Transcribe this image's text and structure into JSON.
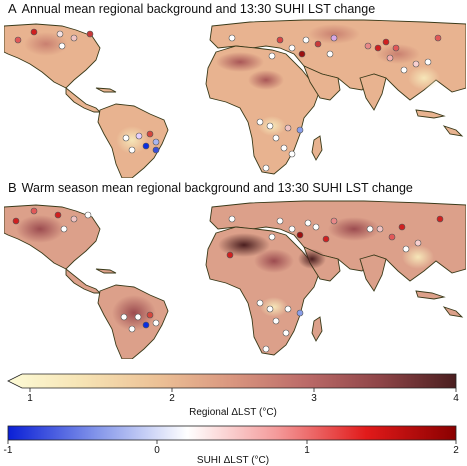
{
  "panels": [
    {
      "letter": "A",
      "title": "Annual mean regional background and 13:30 SUHI LST change"
    },
    {
      "letter": "B",
      "title": "Warm season mean regional background and 13:30 SUHI LST change"
    }
  ],
  "colorbars": {
    "regional": {
      "label": "Regional ΔLST (°C)",
      "ticks": [
        "1",
        "2",
        "3",
        "4"
      ],
      "colors": [
        "#fdfbd6",
        "#f6e3b4",
        "#ecc196",
        "#d9967f",
        "#bb6a68",
        "#8d4447",
        "#4a1e1f"
      ]
    },
    "suhi": {
      "label": "SUHI ΔLST (°C)",
      "ticks": [
        "-1",
        "0",
        "1",
        "2"
      ],
      "colors": [
        "#0a1fd6",
        "#8496ea",
        "#ffffff",
        "#f49a9a",
        "#e11a1a",
        "#8a0000"
      ]
    }
  },
  "colors": {
    "land_base": "#e8b390",
    "ocean": "#ffffff",
    "outline": "#3a3a1a"
  }
}
